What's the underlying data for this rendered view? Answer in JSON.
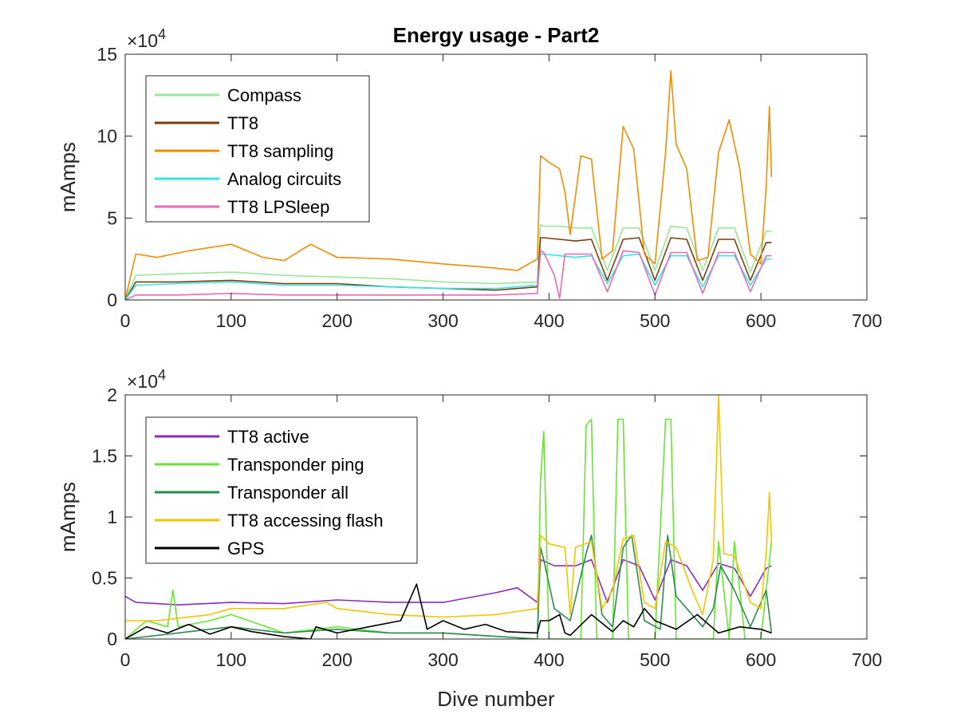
{
  "chart_data": [
    {
      "type": "line",
      "title": "Energy usage - Part2",
      "xlabel": "",
      "ylabel": "mAmps",
      "xlim": [
        0,
        700
      ],
      "ylim": [
        0,
        150000
      ],
      "xticks": [
        "0",
        "100",
        "200",
        "300",
        "400",
        "500",
        "600",
        "700"
      ],
      "yticks": [
        "0",
        "5",
        "10",
        "15"
      ],
      "exponent_label": "×10",
      "exponent_power": "4",
      "grid": false,
      "legend_position": "top-left",
      "series": [
        {
          "name": "Compass",
          "color": "#99e699",
          "x": [
            0,
            10,
            50,
            100,
            150,
            200,
            250,
            300,
            350,
            389,
            392,
            395,
            410,
            425,
            440,
            455,
            470,
            485,
            500,
            515,
            530,
            545,
            560,
            575,
            590,
            605,
            610
          ],
          "y": [
            0,
            15000,
            16000,
            17000,
            15000,
            14000,
            13000,
            11000,
            10000,
            11000,
            46000,
            45000,
            45000,
            44000,
            44000,
            18000,
            44000,
            44000,
            18000,
            45000,
            44000,
            18000,
            44000,
            44000,
            17000,
            42000,
            42000
          ]
        },
        {
          "name": "TT8",
          "color": "#7b3f0f",
          "x": [
            0,
            10,
            50,
            100,
            150,
            200,
            250,
            300,
            350,
            389,
            392,
            395,
            410,
            425,
            440,
            455,
            470,
            485,
            500,
            515,
            530,
            545,
            560,
            575,
            590,
            605,
            610
          ],
          "y": [
            0,
            11000,
            11000,
            12000,
            10000,
            10000,
            8000,
            7000,
            6000,
            8000,
            38000,
            38000,
            37000,
            36000,
            37000,
            12000,
            37000,
            38000,
            12000,
            38000,
            37000,
            12000,
            37000,
            37000,
            12000,
            35000,
            35000
          ]
        },
        {
          "name": "TT8 sampling",
          "color": "#f08c00",
          "x": [
            0,
            10,
            30,
            60,
            100,
            130,
            150,
            175,
            200,
            250,
            300,
            340,
            370,
            389,
            392,
            400,
            410,
            415,
            420,
            430,
            440,
            450,
            460,
            470,
            480,
            490,
            500,
            510,
            515,
            520,
            530,
            540,
            550,
            560,
            570,
            580,
            590,
            600,
            605,
            608,
            610
          ],
          "y": [
            0,
            28000,
            26000,
            30000,
            34000,
            26000,
            24000,
            34000,
            26000,
            25000,
            22000,
            20000,
            18000,
            25000,
            88000,
            84000,
            80000,
            66000,
            40000,
            88000,
            86000,
            25000,
            30000,
            106000,
            92000,
            28000,
            22000,
            90000,
            140000,
            95000,
            80000,
            24000,
            26000,
            90000,
            110000,
            80000,
            28000,
            22000,
            70000,
            118000,
            75000
          ]
        },
        {
          "name": "Analog circuits",
          "color": "#33e6e6",
          "x": [
            0,
            10,
            50,
            100,
            150,
            200,
            250,
            300,
            350,
            389,
            392,
            395,
            410,
            425,
            440,
            455,
            470,
            485,
            500,
            515,
            530,
            545,
            560,
            575,
            590,
            605,
            610
          ],
          "y": [
            0,
            9000,
            10000,
            11000,
            9000,
            9000,
            8000,
            7000,
            7000,
            9000,
            28000,
            28000,
            27000,
            26000,
            27000,
            10000,
            27000,
            28000,
            9000,
            27000,
            27000,
            8000,
            27000,
            27000,
            9000,
            25000,
            25000
          ]
        },
        {
          "name": "TT8 LPSleep",
          "color": "#e66cb2",
          "x": [
            0,
            10,
            50,
            100,
            150,
            200,
            250,
            300,
            350,
            389,
            392,
            395,
            405,
            410,
            415,
            425,
            440,
            455,
            470,
            485,
            500,
            515,
            530,
            545,
            560,
            575,
            590,
            605,
            610
          ],
          "y": [
            0,
            3000,
            3000,
            4000,
            3000,
            3000,
            3000,
            3000,
            3000,
            4000,
            30000,
            29000,
            15000,
            1000,
            28000,
            28000,
            28000,
            5000,
            30000,
            29000,
            3000,
            29000,
            29000,
            4000,
            29000,
            29000,
            5000,
            27000,
            27000
          ]
        }
      ]
    },
    {
      "type": "line",
      "title": "",
      "xlabel": "Dive number",
      "ylabel": "mAmps",
      "xlim": [
        0,
        700
      ],
      "ylim": [
        0,
        20000
      ],
      "xticks": [
        "0",
        "100",
        "200",
        "300",
        "400",
        "500",
        "600",
        "700"
      ],
      "yticks": [
        "0",
        "0.5",
        "1",
        "1.5",
        "2"
      ],
      "exponent_label": "×10",
      "exponent_power": "4",
      "grid": false,
      "legend_position": "top-left",
      "series": [
        {
          "name": "TT8 active",
          "color": "#8c2bbf",
          "x": [
            0,
            10,
            50,
            100,
            150,
            200,
            250,
            300,
            350,
            370,
            389,
            392,
            405,
            425,
            440,
            455,
            470,
            485,
            500,
            515,
            530,
            545,
            560,
            575,
            590,
            605,
            610
          ],
          "y": [
            3500,
            3000,
            2800,
            3000,
            2900,
            3200,
            3000,
            3000,
            3800,
            4200,
            3000,
            6500,
            6000,
            6000,
            6500,
            3000,
            6500,
            6000,
            3200,
            6500,
            6000,
            4000,
            6200,
            5800,
            3500,
            5800,
            6000
          ]
        },
        {
          "name": "Transponder ping",
          "color": "#66e633",
          "x": [
            0,
            20,
            40,
            45,
            50,
            80,
            100,
            150,
            200,
            250,
            300,
            389,
            392,
            395,
            400,
            420,
            430,
            435,
            440,
            445,
            460,
            465,
            470,
            475,
            480,
            500,
            510,
            515,
            520,
            540,
            555,
            560,
            570,
            575,
            585,
            600,
            610
          ],
          "y": [
            0,
            1500,
            1000,
            4000,
            1000,
            1500,
            2000,
            500,
            1000,
            500,
            500,
            0,
            13000,
            17000,
            0,
            0,
            0,
            17500,
            18000,
            0,
            0,
            18000,
            18000,
            0,
            0,
            0,
            18000,
            18000,
            0,
            0,
            0,
            8000,
            0,
            8000,
            0,
            0,
            8000
          ]
        },
        {
          "name": "Transponder all",
          "color": "#2d8c4f",
          "x": [
            0,
            50,
            100,
            150,
            200,
            250,
            300,
            389,
            392,
            395,
            405,
            420,
            435,
            440,
            450,
            460,
            470,
            478,
            490,
            505,
            512,
            520,
            535,
            545,
            555,
            562,
            575,
            590,
            605,
            610
          ],
          "y": [
            0,
            500,
            1000,
            500,
            800,
            500,
            500,
            0,
            7500,
            6500,
            2500,
            1500,
            7000,
            8500,
            2000,
            1000,
            7500,
            8500,
            1500,
            800,
            8500,
            3500,
            2000,
            1000,
            2500,
            6000,
            4000,
            1000,
            4000,
            500
          ]
        },
        {
          "name": "TT8 accessing flash",
          "color": "#f2c500",
          "x": [
            0,
            30,
            80,
            100,
            150,
            190,
            200,
            250,
            300,
            350,
            389,
            392,
            400,
            415,
            420,
            425,
            440,
            450,
            460,
            470,
            480,
            490,
            500,
            510,
            520,
            535,
            545,
            555,
            560,
            565,
            575,
            590,
            600,
            605,
            608,
            610
          ],
          "y": [
            1500,
            1500,
            2000,
            2500,
            2500,
            3000,
            2500,
            2000,
            1800,
            2000,
            2500,
            8500,
            7800,
            7500,
            2000,
            7500,
            8000,
            2500,
            4000,
            8200,
            8500,
            3000,
            2500,
            8000,
            7500,
            4000,
            2000,
            6500,
            20000,
            7000,
            6800,
            3000,
            2500,
            7000,
            12000,
            8000
          ]
        },
        {
          "name": "GPS",
          "color": "#000000",
          "x": [
            0,
            20,
            40,
            60,
            80,
            100,
            120,
            150,
            175,
            180,
            200,
            230,
            260,
            275,
            285,
            300,
            320,
            340,
            360,
            389,
            392,
            400,
            410,
            415,
            420,
            440,
            460,
            470,
            480,
            490,
            500,
            520,
            540,
            560,
            580,
            600,
            610
          ],
          "y": [
            0,
            1000,
            500,
            1200,
            400,
            1000,
            600,
            200,
            0,
            1000,
            500,
            1000,
            1500,
            4500,
            800,
            1500,
            800,
            1200,
            600,
            500,
            1500,
            1500,
            2000,
            500,
            300,
            2000,
            600,
            1500,
            1000,
            2500,
            1500,
            800,
            2000,
            500,
            1000,
            800,
            500
          ]
        }
      ]
    }
  ]
}
